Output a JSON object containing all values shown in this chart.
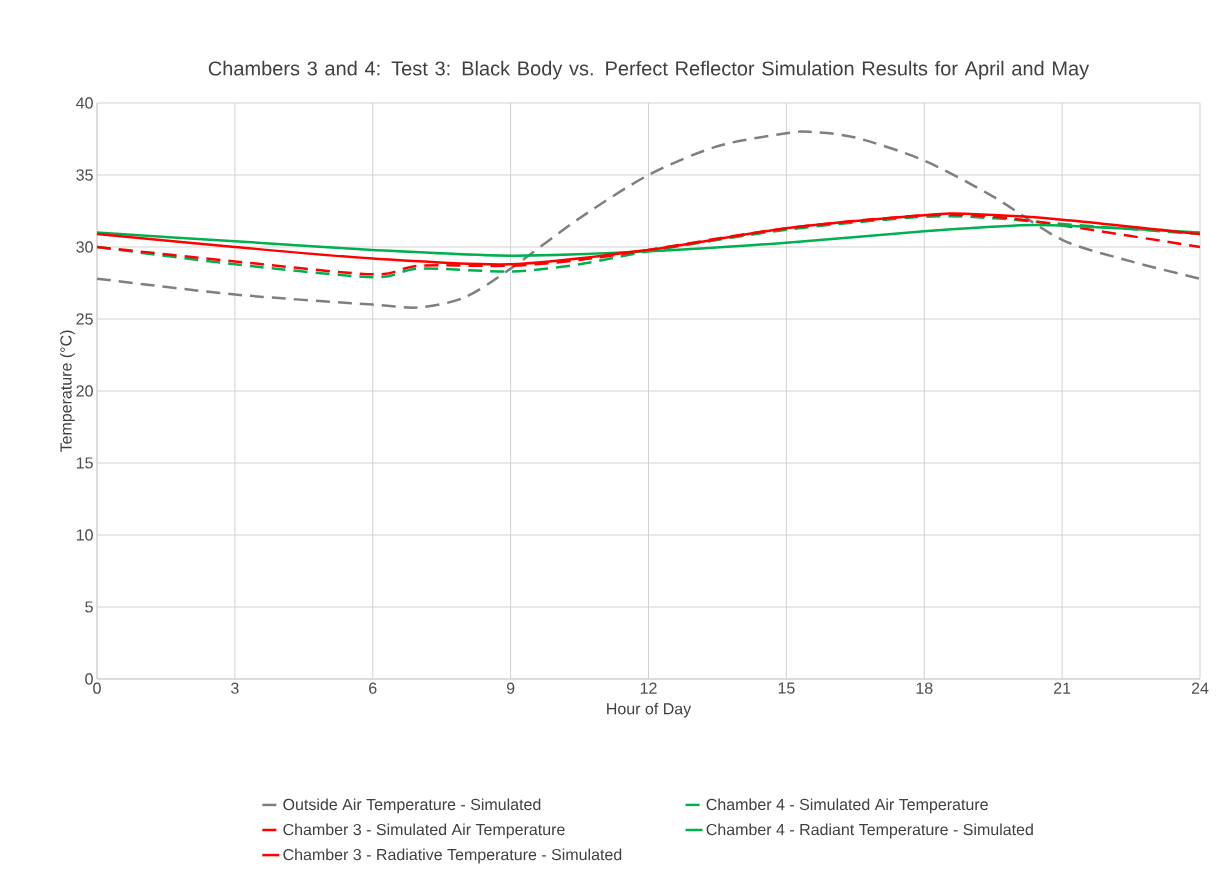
{
  "chart_data": {
    "type": "line",
    "title": "Chambers 3 and 4: Test 3: Black Body vs. Perfect Reflector Simulation Results for April and May",
    "xlabel": "Hour of Day",
    "ylabel": "Temperature (°C)",
    "xlim": [
      0,
      24
    ],
    "xticks": [
      0,
      3,
      6,
      9,
      12,
      15,
      18,
      21,
      24
    ],
    "ylim": [
      0,
      40
    ],
    "yticks": [
      0,
      5,
      10,
      15,
      20,
      25,
      30,
      35,
      40
    ],
    "grid": true,
    "legend": "bottom",
    "series": [
      {
        "name": "Outside Air Temperature - Simulated",
        "color": "#7f7f7f",
        "line_style": "dashed",
        "x": [
          0,
          3,
          6,
          7,
          8,
          9,
          10.5,
          12,
          13.5,
          15,
          15.5,
          16.5,
          18,
          19.5,
          21,
          22.5,
          24
        ],
        "values": [
          27.8,
          26.7,
          26.0,
          25.8,
          26.5,
          28.5,
          32,
          35,
          37,
          37.9,
          38,
          37.6,
          36,
          33.5,
          30.5,
          29,
          27.8
        ]
      },
      {
        "name": "Chamber 4 - Simulated Air Temperature",
        "color": "#00b050",
        "line_style": "dashed",
        "x": [
          0,
          3,
          6,
          7,
          9,
          10.5,
          12,
          15,
          18,
          19.5,
          21,
          24
        ],
        "values": [
          30,
          28.8,
          27.9,
          28.5,
          28.3,
          28.8,
          29.7,
          31.2,
          32.1,
          32,
          31.6,
          30.9
        ]
      },
      {
        "name": "Chamber 3 - Simulated Air Temperature",
        "color": "#ff0000",
        "line_style": "dashed",
        "x": [
          0,
          3,
          6,
          7,
          9,
          10.5,
          12,
          15,
          18,
          19.5,
          21,
          24
        ],
        "values": [
          30,
          29,
          28.1,
          28.7,
          28.7,
          29.1,
          29.8,
          31.3,
          32.2,
          32.1,
          31.5,
          30
        ]
      },
      {
        "name": "Chamber 4 - Radiant Temperature - Simulated",
        "color": "#00b050",
        "line_style": "solid",
        "x": [
          0,
          3,
          6,
          9,
          12,
          15,
          18,
          20,
          21,
          24
        ],
        "values": [
          31,
          30.4,
          29.8,
          29.4,
          29.7,
          30.3,
          31.1,
          31.5,
          31.5,
          31
        ]
      },
      {
        "name": "Chamber 3 - Radiative Temperature - Simulated",
        "color": "#ff0000",
        "line_style": "solid",
        "x": [
          0,
          3,
          6,
          9,
          12,
          15,
          18,
          19,
          21,
          24
        ],
        "values": [
          30.9,
          30,
          29.2,
          28.8,
          29.8,
          31.3,
          32.2,
          32.3,
          31.9,
          30.9
        ]
      }
    ]
  }
}
